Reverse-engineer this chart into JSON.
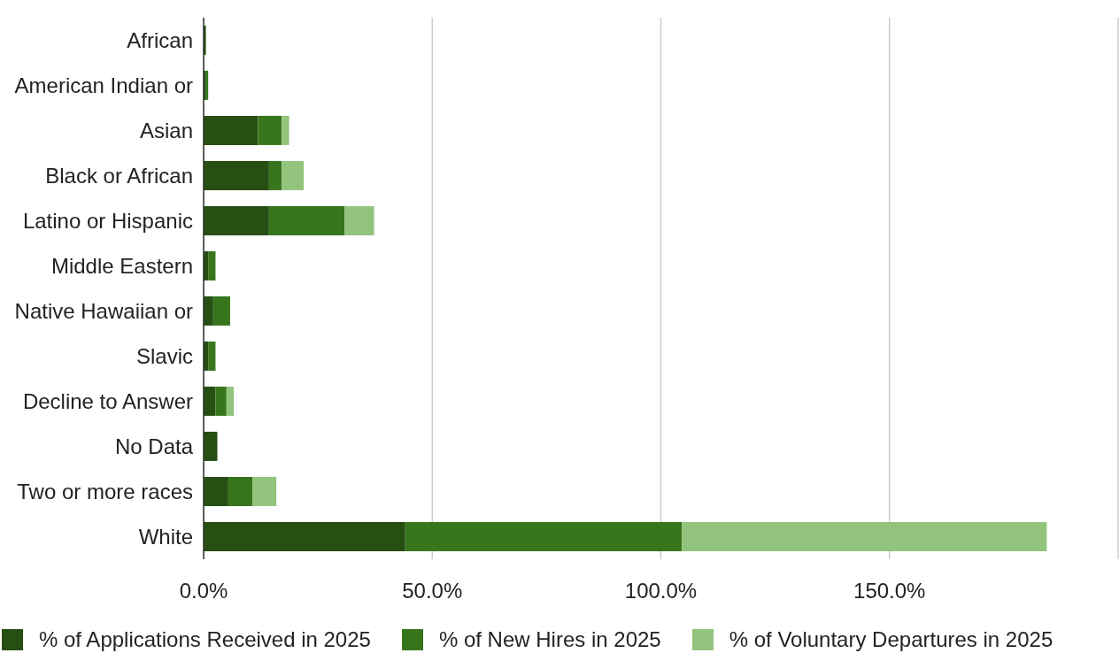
{
  "chart_data": {
    "type": "bar",
    "orientation": "horizontal",
    "stacked": true,
    "categories": [
      "African",
      "American Indian or",
      "Asian",
      "Black or African",
      "Latino or Hispanic",
      "Middle Eastern",
      "Native Hawaiian or",
      "Slavic",
      "Decline to Answer",
      "No Data",
      "Two or more races",
      "White"
    ],
    "series": [
      {
        "name": "% of Applications Received in 2025",
        "color": "#274e13",
        "values": [
          0.5,
          0.4,
          11.9,
          14.3,
          14.3,
          1.0,
          2.1,
          1.0,
          2.6,
          3.0,
          5.4,
          44.1
        ]
      },
      {
        "name": "% of New Hires in 2025",
        "color": "#38761d",
        "values": [
          null,
          0.6,
          5.2,
          2.8,
          16.5,
          1.6,
          3.7,
          1.6,
          2.4,
          null,
          5.3,
          60.5
        ]
      },
      {
        "name": "% of Voluntary Departures in 2025",
        "color": "#93c47d",
        "values": [
          null,
          null,
          1.6,
          4.8,
          6.5,
          null,
          null,
          null,
          1.6,
          null,
          5.2,
          79.8
        ]
      }
    ],
    "xlim": [
      0,
      200
    ],
    "xticks": [
      {
        "value": 0,
        "label": "0.0%"
      },
      {
        "value": 50,
        "label": "50.0%"
      },
      {
        "value": 100,
        "label": "100.0%"
      },
      {
        "value": 150,
        "label": "150.0%"
      },
      {
        "value": 200,
        "label": null
      }
    ],
    "grid": "x",
    "legend": "bottom"
  }
}
